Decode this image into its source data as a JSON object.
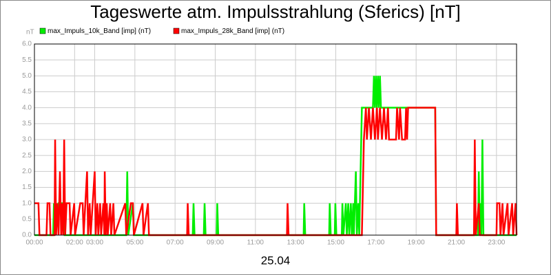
{
  "chart_data": {
    "type": "line",
    "title": "Tageswerte atm. Impulsstrahlung (Sferics) [nT]",
    "y_label": "nT",
    "x_label": "25.04",
    "xlim": [
      0,
      24
    ],
    "xticks": [
      {
        "value": 0,
        "label": "00:00"
      },
      {
        "value": 2,
        "label": "02:00"
      },
      {
        "value": 3,
        "label": "03:00"
      },
      {
        "value": 5,
        "label": "05:00"
      },
      {
        "value": 7,
        "label": "07:00"
      },
      {
        "value": 9,
        "label": "09:00"
      },
      {
        "value": 11,
        "label": "11:00"
      },
      {
        "value": 13,
        "label": "13:00"
      },
      {
        "value": 15,
        "label": "15:00"
      },
      {
        "value": 17,
        "label": "17:00"
      },
      {
        "value": 19,
        "label": "19:00"
      },
      {
        "value": 21,
        "label": "21:00"
      },
      {
        "value": 23,
        "label": "23:00"
      }
    ],
    "ylim": [
      0,
      6
    ],
    "yticks": [
      {
        "value": 0,
        "label": "0.0"
      },
      {
        "value": 0.5,
        "label": "0.5"
      },
      {
        "value": 1,
        "label": "1.0"
      },
      {
        "value": 1.5,
        "label": "1.5"
      },
      {
        "value": 2,
        "label": "2.0"
      },
      {
        "value": 2.5,
        "label": "2.5"
      },
      {
        "value": 3,
        "label": "3.0"
      },
      {
        "value": 3.5,
        "label": "3.5"
      },
      {
        "value": 4,
        "label": "4.0"
      },
      {
        "value": 4.5,
        "label": "4.5"
      },
      {
        "value": 5,
        "label": "5.0"
      },
      {
        "value": 5.5,
        "label": "5.5"
      },
      {
        "value": 6,
        "label": "6.0"
      }
    ],
    "grid": true,
    "series": [
      {
        "name": "max_Impuls_10k_Band [imp] (nT)",
        "color": "#00ee00",
        "x": [
          0,
          0.93,
          0.97,
          1.02,
          1.2,
          1.45,
          1.5,
          4.57,
          4.62,
          4.67,
          4.9,
          4.95,
          7.88,
          7.92,
          7.97,
          8.43,
          8.47,
          8.52,
          9.07,
          9.1,
          9.15,
          13.4,
          13.43,
          13.48,
          14.67,
          14.7,
          14.75,
          14.95,
          14.98,
          15.03,
          15.3,
          15.33,
          15.38,
          15.5,
          15.55,
          15.62,
          15.67,
          15.75,
          15.8,
          15.87,
          15.9,
          16.0,
          16.05,
          16.12,
          16.17,
          16.3,
          16.85,
          16.9,
          16.95,
          17.0,
          17.05,
          17.1,
          17.15,
          17.2,
          17.25,
          19.95,
          20.0,
          22.08,
          22.12,
          22.17,
          22.2,
          22.25,
          22.3,
          22.35,
          24
        ],
        "values": [
          0,
          0,
          1,
          0,
          1,
          1,
          0,
          0,
          2,
          0,
          1,
          0,
          0,
          1,
          0,
          0,
          1,
          0,
          0,
          1,
          0,
          0,
          1,
          0,
          0,
          1,
          0,
          0,
          1,
          0,
          0,
          1,
          0,
          1,
          0,
          1,
          0,
          1,
          0,
          1,
          0,
          2,
          0,
          1,
          0,
          4,
          4,
          5,
          4,
          5,
          4,
          5,
          4,
          5,
          4,
          4,
          0,
          0,
          2,
          0,
          1,
          0,
          3,
          0,
          0
        ]
      },
      {
        "name": "max_Impuls_28k_Band [imp] (nT)",
        "color": "#ff0000",
        "x": [
          0,
          0.2,
          0.25,
          0.6,
          0.65,
          0.75,
          0.8,
          1.0,
          1.03,
          1.08,
          1.13,
          1.2,
          1.27,
          1.33,
          1.38,
          1.43,
          1.48,
          1.53,
          1.6,
          1.75,
          1.8,
          1.98,
          2.02,
          2.28,
          2.4,
          2.45,
          2.62,
          2.67,
          2.75,
          2.8,
          3.0,
          3.05,
          3.13,
          3.18,
          3.27,
          3.32,
          3.43,
          3.48,
          3.5,
          3.55,
          3.6,
          3.65,
          3.77,
          3.82,
          3.93,
          3.98,
          4.52,
          4.57,
          4.8,
          4.9,
          4.95,
          5.38,
          5.43,
          5.65,
          5.7,
          7.6,
          7.63,
          7.68,
          12.57,
          12.6,
          12.65,
          16.3,
          16.4,
          16.5,
          16.55,
          16.65,
          16.75,
          16.85,
          16.95,
          17.05,
          17.1,
          17.2,
          17.3,
          17.4,
          17.5,
          17.6,
          17.65,
          18.0,
          18.05,
          18.15,
          18.2,
          18.3,
          18.45,
          18.5,
          18.55,
          18.6,
          19.95,
          20.0,
          21.0,
          21.03,
          21.08,
          21.88,
          21.92,
          21.97,
          22.12,
          22.17,
          23.0,
          23.03,
          23.15,
          23.2,
          23.3,
          23.35,
          23.55,
          23.6,
          23.78,
          23.83,
          23.95,
          24
        ],
        "values": [
          1,
          1,
          0,
          0,
          1,
          1,
          0,
          0,
          3,
          0,
          1,
          0,
          2,
          0,
          1,
          0,
          3,
          0,
          1,
          1,
          0,
          1,
          0,
          1,
          1,
          0,
          2,
          0,
          1,
          0,
          2,
          0,
          1,
          0,
          1,
          0,
          1,
          0,
          2,
          0,
          1,
          0,
          1,
          0,
          1,
          0,
          1,
          0,
          1,
          1,
          0,
          1,
          0,
          1,
          0,
          0,
          1,
          0,
          0,
          1,
          0,
          0,
          3,
          4,
          3,
          4,
          3,
          4,
          3,
          4,
          3,
          4,
          3,
          4,
          3,
          4,
          3,
          3,
          4,
          3,
          4,
          3,
          3,
          4,
          3,
          4,
          4,
          0,
          0,
          1,
          0,
          0,
          3,
          0,
          1,
          0,
          0,
          1,
          1,
          0,
          1,
          0,
          1,
          0,
          1,
          0,
          1,
          0
        ]
      }
    ]
  }
}
